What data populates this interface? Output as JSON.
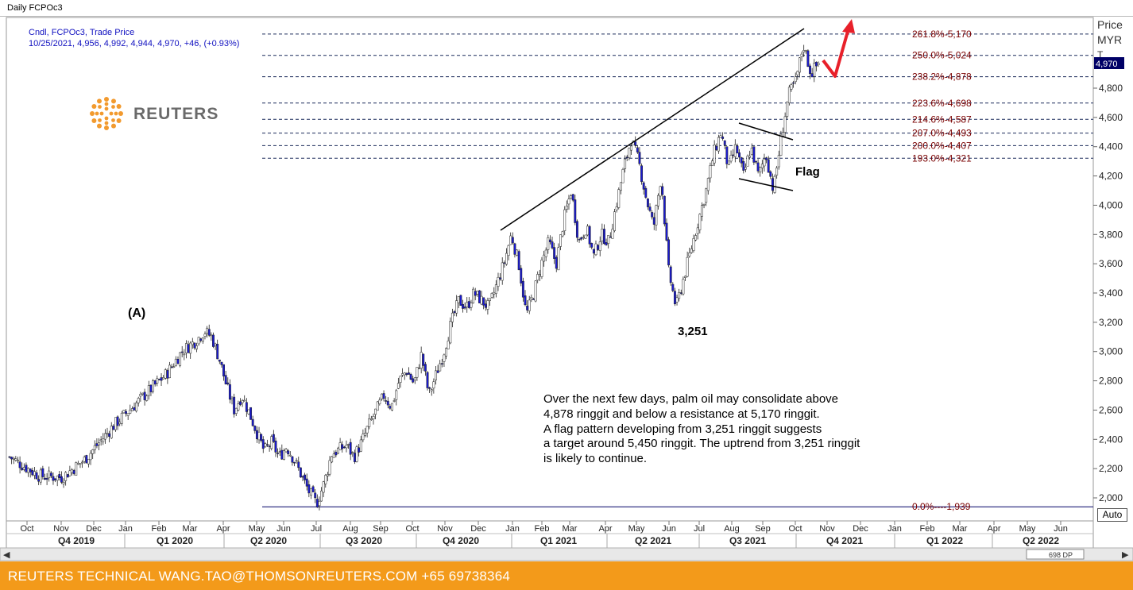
{
  "window": {
    "title": "Daily FCPOc3"
  },
  "legend": {
    "line1": "Cndl, FCPOc3, Trade Price",
    "line2": "10/25/2021, 4,956, 4,992, 4,944, 4,970, +46, (+0.93%)"
  },
  "logo": {
    "text": "REUTERS"
  },
  "axis": {
    "price_label": "Price",
    "currency_label": "MYR",
    "currency_sub": "T",
    "last_value_tag": "4,970",
    "auto_button": "Auto",
    "dp_count": "698 DP"
  },
  "annotations": {
    "wave_a": "(A)",
    "low_label": "3,251",
    "flag_label": "Flag",
    "commentary": [
      "Over the next few days, palm oil may consolidate above",
      "4,878 ringgit and below a resistance at 5,170 ringgit.",
      "A flag pattern developing from 3,251 ringgit suggests",
      "a target around 5,450 ringgit. The uptrend from 3,251 ringgit",
      "is likely to continue."
    ]
  },
  "footer": {
    "text": "REUTERS TECHNICAL  WANG.TAO@THOMSONREUTERS.COM  +65 69738364"
  },
  "colors": {
    "candle_up": "#ffffff",
    "candle_down": "#1a1ad0",
    "fib_text": "#7a0000",
    "arrow": "#e8202a",
    "footer_bg": "#f39a1a"
  },
  "chart_data": {
    "type": "candlestick",
    "title": "Daily FCPOc3",
    "ylabel": "Price MYR",
    "ylim": [
      1940,
      5300
    ],
    "y_ticks": [
      "2,000",
      "2,200",
      "2,400",
      "2,600",
      "2,800",
      "3,000",
      "3,200",
      "3,400",
      "3,600",
      "3,800",
      "4,000",
      "4,200",
      "4,400",
      "4,600",
      "4,800"
    ],
    "months": [
      "Oct",
      "Nov",
      "Dec",
      "Jan",
      "Feb",
      "Mar",
      "Apr",
      "May",
      "Jun",
      "Jul",
      "Aug",
      "Sep",
      "Oct",
      "Nov",
      "Dec",
      "Jan",
      "Feb",
      "Mar",
      "Apr",
      "May",
      "Jun",
      "Jul",
      "Aug",
      "Sep",
      "Oct",
      "Nov",
      "Dec",
      "Jan",
      "Feb",
      "Mar",
      "Apr",
      "May",
      "Jun"
    ],
    "quarters": [
      "Q4 2019",
      "Q1 2020",
      "Q2 2020",
      "Q3 2020",
      "Q4 2020",
      "Q1 2021",
      "Q2 2021",
      "Q3 2021",
      "Q4 2021",
      "Q1 2022",
      "Q2 2022"
    ],
    "path": [
      [
        0,
        2280
      ],
      [
        4,
        2150
      ],
      [
        7,
        2140
      ],
      [
        10,
        2260
      ],
      [
        14,
        2500
      ],
      [
        18,
        2700
      ],
      [
        21,
        2850
      ],
      [
        23,
        3000
      ],
      [
        25,
        3080
      ],
      [
        26,
        3140
      ],
      [
        27,
        3100
      ],
      [
        28,
        2950
      ],
      [
        29,
        2760
      ],
      [
        30,
        2600
      ],
      [
        31,
        2700
      ],
      [
        32,
        2580
      ],
      [
        33,
        2450
      ],
      [
        34,
        2320
      ],
      [
        35,
        2380
      ],
      [
        36,
        2280
      ],
      [
        37,
        2350
      ],
      [
        38,
        2260
      ],
      [
        39,
        2150
      ],
      [
        40,
        2040
      ],
      [
        41,
        1960
      ],
      [
        42,
        2100
      ],
      [
        43,
        2300
      ],
      [
        45,
        2360
      ],
      [
        46,
        2280
      ],
      [
        47,
        2380
      ],
      [
        48,
        2500
      ],
      [
        50,
        2700
      ],
      [
        51,
        2620
      ],
      [
        52,
        2800
      ],
      [
        53,
        2870
      ],
      [
        54,
        2780
      ],
      [
        55,
        2980
      ],
      [
        56,
        2700
      ],
      [
        57,
        2850
      ],
      [
        58,
        3000
      ],
      [
        59,
        3200
      ],
      [
        60,
        3350
      ],
      [
        61,
        3300
      ],
      [
        62,
        3400
      ],
      [
        63,
        3350
      ],
      [
        64,
        3300
      ],
      [
        65,
        3450
      ],
      [
        66,
        3600
      ],
      [
        67,
        3800
      ],
      [
        68,
        3600
      ],
      [
        69,
        3250
      ],
      [
        70,
        3400
      ],
      [
        71,
        3600
      ],
      [
        72,
        3750
      ],
      [
        73,
        3600
      ],
      [
        74,
        3900
      ],
      [
        75,
        4100
      ],
      [
        76,
        3750
      ],
      [
        77,
        3850
      ],
      [
        78,
        3650
      ],
      [
        79,
        3800
      ],
      [
        80,
        3750
      ],
      [
        81,
        4000
      ],
      [
        82,
        4250
      ],
      [
        83,
        4450
      ],
      [
        84,
        4300
      ],
      [
        85,
        4050
      ],
      [
        86,
        3850
      ],
      [
        87,
        4200
      ],
      [
        88,
        3550
      ],
      [
        89,
        3300
      ],
      [
        90,
        3500
      ],
      [
        91,
        3700
      ],
      [
        92,
        3900
      ],
      [
        93,
        4100
      ],
      [
        94,
        4350
      ],
      [
        95,
        4500
      ],
      [
        96,
        4250
      ],
      [
        97,
        4400
      ],
      [
        98,
        4200
      ],
      [
        99,
        4400
      ],
      [
        100,
        4200
      ],
      [
        101,
        4350
      ],
      [
        102,
        4100
      ],
      [
        103,
        4450
      ],
      [
        104,
        4750
      ],
      [
        105,
        4850
      ],
      [
        106,
        5100
      ],
      [
        107,
        4900
      ],
      [
        108,
        4970
      ]
    ],
    "fibonacci": [
      {
        "label": "261.8%-5,170",
        "value": 5170
      },
      {
        "label": "250.0%-5,024",
        "value": 5024
      },
      {
        "label": "238.2%-4,878",
        "value": 4878
      },
      {
        "label": "223.6%-4,698",
        "value": 4698
      },
      {
        "label": "214.6%-4,587",
        "value": 4587
      },
      {
        "label": "207.0%-4,493",
        "value": 4493
      },
      {
        "label": "200.0%-4,407",
        "value": 4407
      },
      {
        "label": "193.0%-4,321",
        "value": 4321
      },
      {
        "label": "0.0%----1,939",
        "value": 1939
      }
    ]
  }
}
